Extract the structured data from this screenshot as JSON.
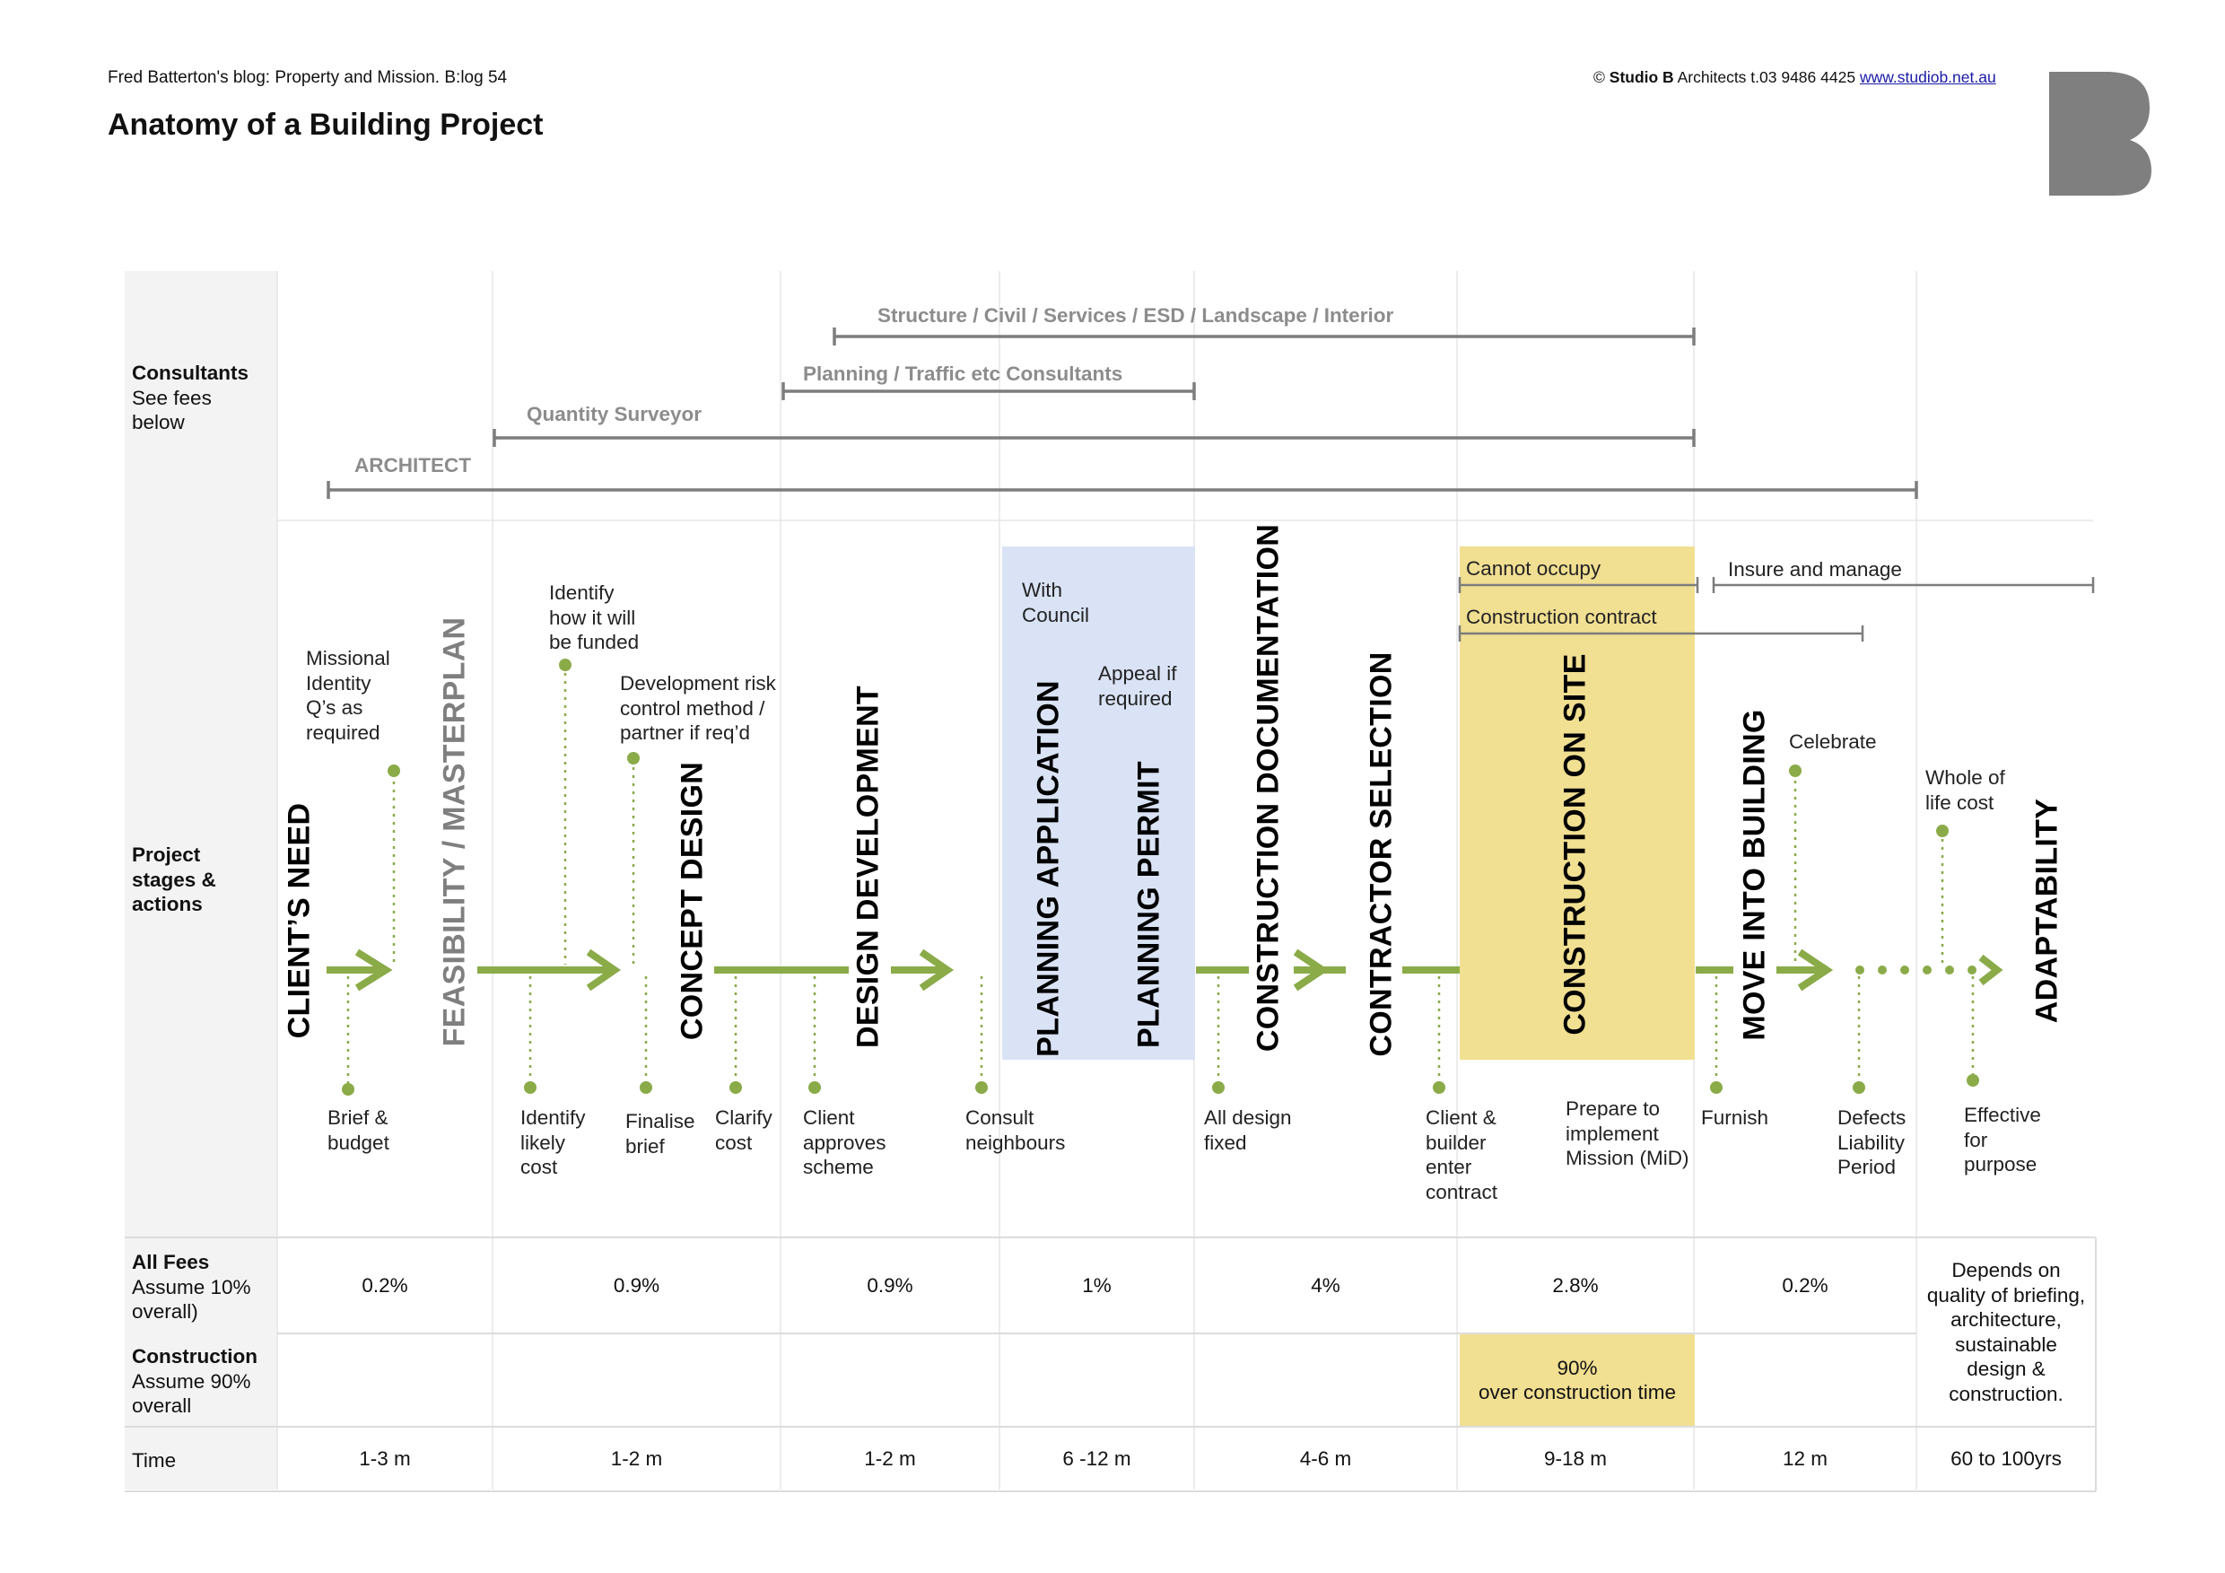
{
  "header": {
    "blog_line": "Fred Batterton's blog: Property and Mission. B:log 54",
    "title": "Anatomy of a Building Project",
    "copyright_prefix": "© ",
    "copyright_studio": "Studio B",
    "copyright_rest": " Architects  t.03 9486 4425  ",
    "website": "www.studiob.net.au",
    "logo_letter": "B"
  },
  "colors": {
    "green": "#8aab48",
    "blue_box": "#d9e3f5",
    "yellow_box": "#f1df92",
    "grey_column": "#f3f3f3",
    "consultant_line": "#7d7d7d",
    "logo_grey": "#7f7f7f"
  },
  "row_labels": {
    "consultants": {
      "title": "Consultants",
      "sub1": "See fees",
      "sub2": "below"
    },
    "stages": {
      "l1": "Project",
      "l2": "stages &",
      "l3": "actions"
    },
    "fees": {
      "title": "All Fees",
      "sub1": "Assume 10%",
      "sub2": "overall)"
    },
    "construction": {
      "title": "Construction",
      "sub1": "Assume 90%",
      "sub2": "overall"
    },
    "time": {
      "title": "Time"
    }
  },
  "consultants": {
    "structure": "Structure / Civil / Services /  ESD / Landscape / Interior",
    "planning": "Planning / Traffic etc Consultants",
    "qs": "Quantity Surveyor",
    "architect": "ARCHITECT"
  },
  "stages": {
    "clients_need": "CLIENT’S NEED",
    "feasibility": "FEASIBILITY / MASTERPLAN",
    "concept": "CONCEPT DESIGN",
    "design_dev": "DESIGN DEVELOPMENT",
    "planning_app": "PLANNING APPLICATION",
    "planning_permit": "PLANNING PERMIT",
    "construction_doc": "CONSTRUCTION DOCUMENTATION",
    "contractor": "CONTRACTOR SELECTION",
    "construction_site": "CONSTRUCTION ON SITE",
    "move_in": "MOVE INTO BUILDING",
    "adaptability": "ADAPTABILITY"
  },
  "actions_above": {
    "missional": [
      "Missional",
      "Identity",
      "Q’s as",
      "required"
    ],
    "identify_funded": [
      "Identify",
      "how it will",
      "be funded"
    ],
    "dev_risk": [
      "Development risk",
      "control method /",
      "partner if req’d"
    ],
    "with_council": [
      "With",
      "Council"
    ],
    "appeal": [
      "Appeal if",
      "required"
    ],
    "cannot_occupy": "Cannot occupy",
    "construction_contract": "Construction contract",
    "insure_manage": "Insure and manage",
    "celebrate": "Celebrate",
    "whole_of_life": [
      "Whole of",
      "life cost"
    ]
  },
  "actions_below": {
    "brief_budget": [
      "Brief &",
      "budget"
    ],
    "identify_cost": [
      "Identify",
      "likely",
      "cost"
    ],
    "finalise_brief": [
      "Finalise",
      "brief"
    ],
    "clarify_cost": [
      "Clarify",
      "cost"
    ],
    "client_approves": [
      "Client",
      "approves",
      "scheme"
    ],
    "consult_neighbours": [
      "Consult",
      "neighbours"
    ],
    "all_design_fixed": [
      "All design",
      "fixed"
    ],
    "client_builder": [
      "Client &",
      "builder",
      "enter",
      "contract"
    ],
    "prepare_mid": [
      "Prepare to",
      "implement",
      "Mission (MiD)"
    ],
    "furnish": "Furnish",
    "defects": [
      "Defects",
      "Liability",
      "Period"
    ],
    "effective": [
      "Effective",
      "for",
      "purpose"
    ]
  },
  "fees": [
    "0.2%",
    "0.9%",
    "0.9%",
    "1%",
    "4%",
    "2.8%",
    "0.2%"
  ],
  "adaptability_note": [
    "Depends on",
    "quality of briefing,",
    "architecture,",
    "sustainable",
    "design &",
    "construction."
  ],
  "construction_note": [
    "90%",
    "over construction time"
  ],
  "times": [
    "1-3 m",
    "1-2 m",
    "1-2 m",
    "6 -12 m",
    "4-6 m",
    "9-18 m",
    "12 m",
    "60 to 100yrs"
  ]
}
